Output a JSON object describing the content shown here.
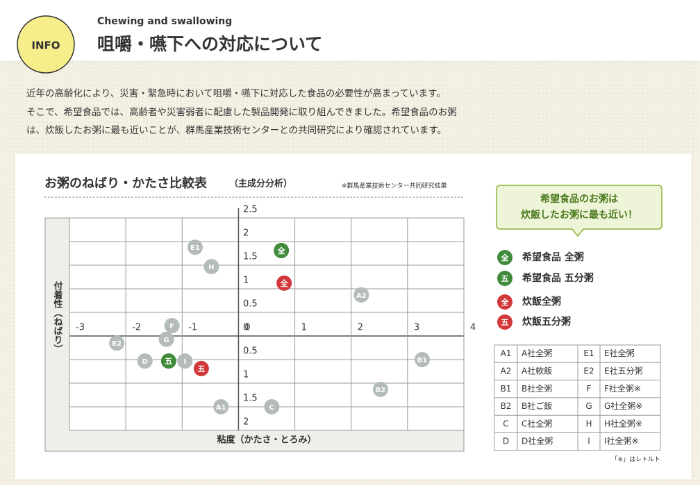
{
  "header": {
    "badge": "INFO",
    "subtitle": "Chewing and swallowing",
    "title": "咀嚼・嚥下への対応について"
  },
  "intro": [
    "近年の高齢化により、災害・緊急時において咀嚼・嚥下に対応した食品の必要性が高まっています。",
    "そこで、希望食品では、高齢者や災害弱者に配慮した製品開発に取り組んできました。希望食品のお粥",
    "は、炊飯したお粥に最も近いことが、群馬産業技術センターとの共同研究により確認されています。"
  ],
  "chart_data": {
    "type": "scatter",
    "title": "お粥のねばり・かたさ比較表",
    "title_suffix": "（主成分分析）",
    "source": "※群馬産業技術センター共同研究結果",
    "x_label": "粘度（かたさ・とろみ）",
    "y_label": "付着性（ねばり）",
    "xlim": [
      -3,
      4
    ],
    "ylim": [
      -2,
      2.5
    ],
    "xticks": [
      -3,
      -2,
      -1,
      0,
      1,
      2,
      3,
      4
    ],
    "yticks": [
      2.5,
      2,
      1.5,
      1,
      0.5,
      0,
      {
        "value": -0.5,
        "label": "0.5"
      },
      {
        "value": -1,
        "label": "1"
      },
      {
        "value": -1.5,
        "label": "1.5"
      },
      {
        "value": -2,
        "label": "2"
      }
    ],
    "grid": true,
    "series": [
      {
        "name": "希望食品 全粥",
        "marker": "全",
        "color": "#3f8b3a",
        "x": [
          0.76
        ],
        "values": [
          1.81
        ]
      },
      {
        "name": "希望食品 五分粥",
        "marker": "五",
        "color": "#3f8b3a",
        "x": [
          -1.24
        ],
        "values": [
          -0.53
        ]
      },
      {
        "name": "炊飯全粥",
        "marker": "全",
        "color": "#d2383a",
        "x": [
          0.81
        ],
        "values": [
          1.12
        ]
      },
      {
        "name": "炊飯五分粥",
        "marker": "五",
        "color": "#d2383a",
        "x": [
          -0.66
        ],
        "values": [
          -0.69
        ]
      },
      {
        "color": "#b3bbbb",
        "labels": [
          "E1",
          "H",
          "A2",
          "F",
          "G",
          "E2",
          "D",
          "I",
          "B1",
          "B2",
          "A1",
          "C"
        ],
        "x": [
          -0.77,
          -0.48,
          2.18,
          -1.18,
          -1.28,
          -2.16,
          -1.66,
          -0.95,
          3.26,
          2.52,
          -0.31,
          0.59
        ],
        "values": [
          1.88,
          1.47,
          0.87,
          0.22,
          -0.07,
          -0.15,
          -0.53,
          -0.53,
          -0.5,
          -1.13,
          -1.5,
          -1.5
        ]
      }
    ]
  },
  "callout": [
    "希望食品のお粥は",
    "炊飯したお粥に最も近い！"
  ],
  "table": {
    "rows": [
      [
        "A1",
        "A社全粥",
        "E1",
        "E社全粥"
      ],
      [
        "A2",
        "A社軟飯",
        "E2",
        "E社五分粥"
      ],
      [
        "B1",
        "B社全粥",
        "F",
        "F社全粥※"
      ],
      [
        "B2",
        "B社ご飯",
        "G",
        "G社全粥※"
      ],
      [
        "C",
        "C社全粥",
        "H",
        "H社全粥※"
      ],
      [
        "D",
        "D社全粥",
        "I",
        "I社全粥※"
      ]
    ],
    "note": "「※」はレトルト"
  }
}
